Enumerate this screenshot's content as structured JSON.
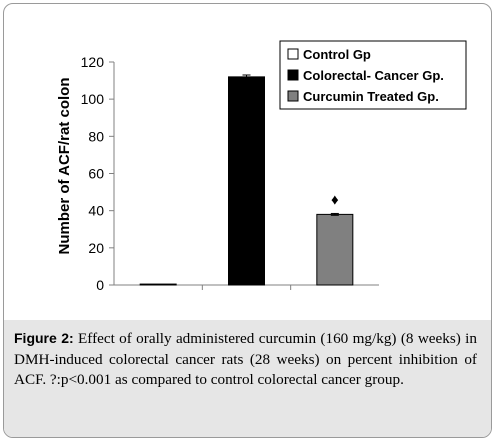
{
  "chart_data": {
    "type": "bar",
    "categories": [
      "Control Gp",
      "Colorectal- Cancer Gp.",
      "Curcumin Treated Gp."
    ],
    "values": [
      0.5,
      112,
      38
    ],
    "errors": [
      0,
      1,
      0.5
    ],
    "colors": [
      "#ffffff",
      "#000000",
      "#808080"
    ],
    "ylabel": "Number  of ACF/rat colon",
    "ylim": [
      0,
      120
    ],
    "yticks": [
      0,
      20,
      40,
      60,
      80,
      100,
      120
    ],
    "legend": [
      "Control Gp",
      "Colorectal- Cancer Gp.",
      "Curcumin Treated Gp."
    ],
    "legend_position": "top-right",
    "grid": false,
    "annotation": {
      "text": "♦",
      "category_index": 2
    }
  },
  "caption": {
    "label": "Figure 2:",
    "text": " Effect of orally administered curcumin (160 mg/kg) (8 weeks) in DMH-induced colorectal cancer rats (28 weeks) on percent inhibition of ACF. ?:p<0.001 as compared to control colorectal cancer group."
  }
}
